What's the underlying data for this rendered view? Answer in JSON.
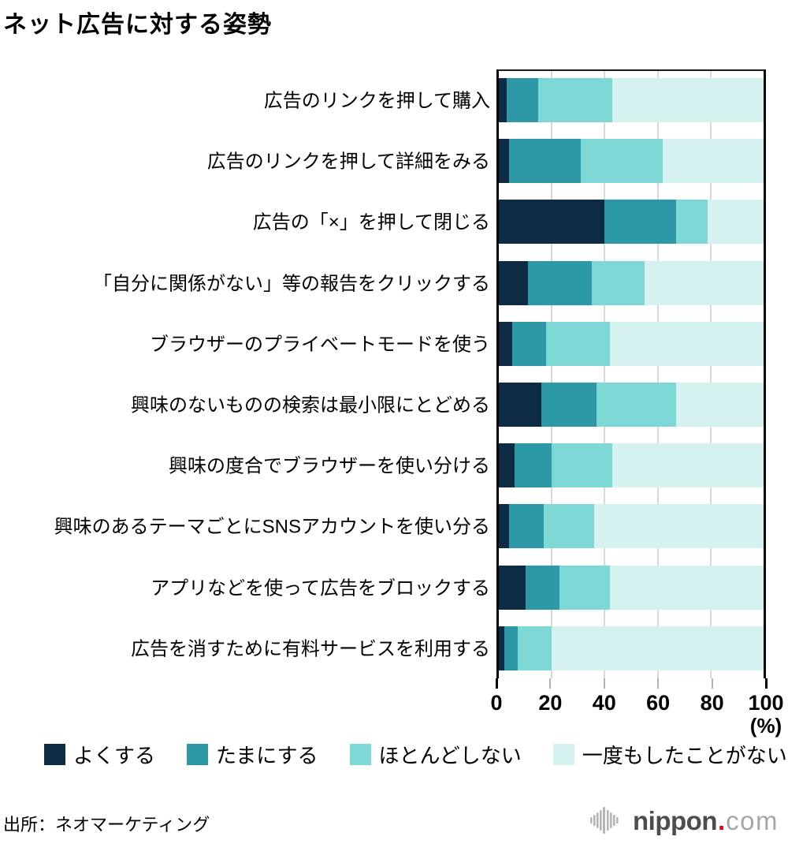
{
  "title": "ネット広告に対する姿勢",
  "chart_data": {
    "type": "bar",
    "orientation": "horizontal",
    "stacked": true,
    "title": "ネット広告に対する姿勢",
    "xlabel": "(%)",
    "xlim": [
      0,
      100
    ],
    "xticks": [
      0,
      20,
      40,
      60,
      80,
      100
    ],
    "grid": true,
    "legend_position": "bottom",
    "categories": [
      "広告のリンクを押して購入",
      "広告のリンクを押して詳細をみる",
      "広告の「×」を押して閉じる",
      "「自分に関係がない」等の報告をクリックする",
      "ブラウザーのプライベートモードを使う",
      "興味のないものの検索は最小限にとどめる",
      "興味の度合でブラウザーを使い分ける",
      "興味のあるテーマごとにSNSアカウントを使い分る",
      "アプリなどを使って広告をブロックする",
      "広告を消すために有料サービスを利用する"
    ],
    "series": [
      {
        "name": "よくする",
        "color": "#0d2b42",
        "values": [
          3,
          4,
          40,
          11,
          5,
          16,
          6,
          4,
          10,
          2
        ]
      },
      {
        "name": "たまにする",
        "color": "#2e99a6",
        "values": [
          12,
          27,
          27,
          24,
          13,
          21,
          14,
          13,
          13,
          5
        ]
      },
      {
        "name": "ほとんどしない",
        "color": "#7ed9d6",
        "values": [
          28,
          31,
          12,
          20,
          24,
          30,
          23,
          19,
          19,
          13
        ]
      },
      {
        "name": "一度もしたことがない",
        "color": "#d5f1f0",
        "values": [
          57,
          38,
          21,
          45,
          58,
          33,
          57,
          64,
          58,
          80
        ]
      }
    ]
  },
  "axis": {
    "tick_color_minor": "#b3b3b3",
    "tick_color_major": "#000000",
    "gridline_color": "#d9d9d9"
  },
  "footer": {
    "source": "出所：ネオマーケティング",
    "logo": {
      "text_main": "nippon",
      "text_dot": ".",
      "text_suffix": "com"
    }
  }
}
